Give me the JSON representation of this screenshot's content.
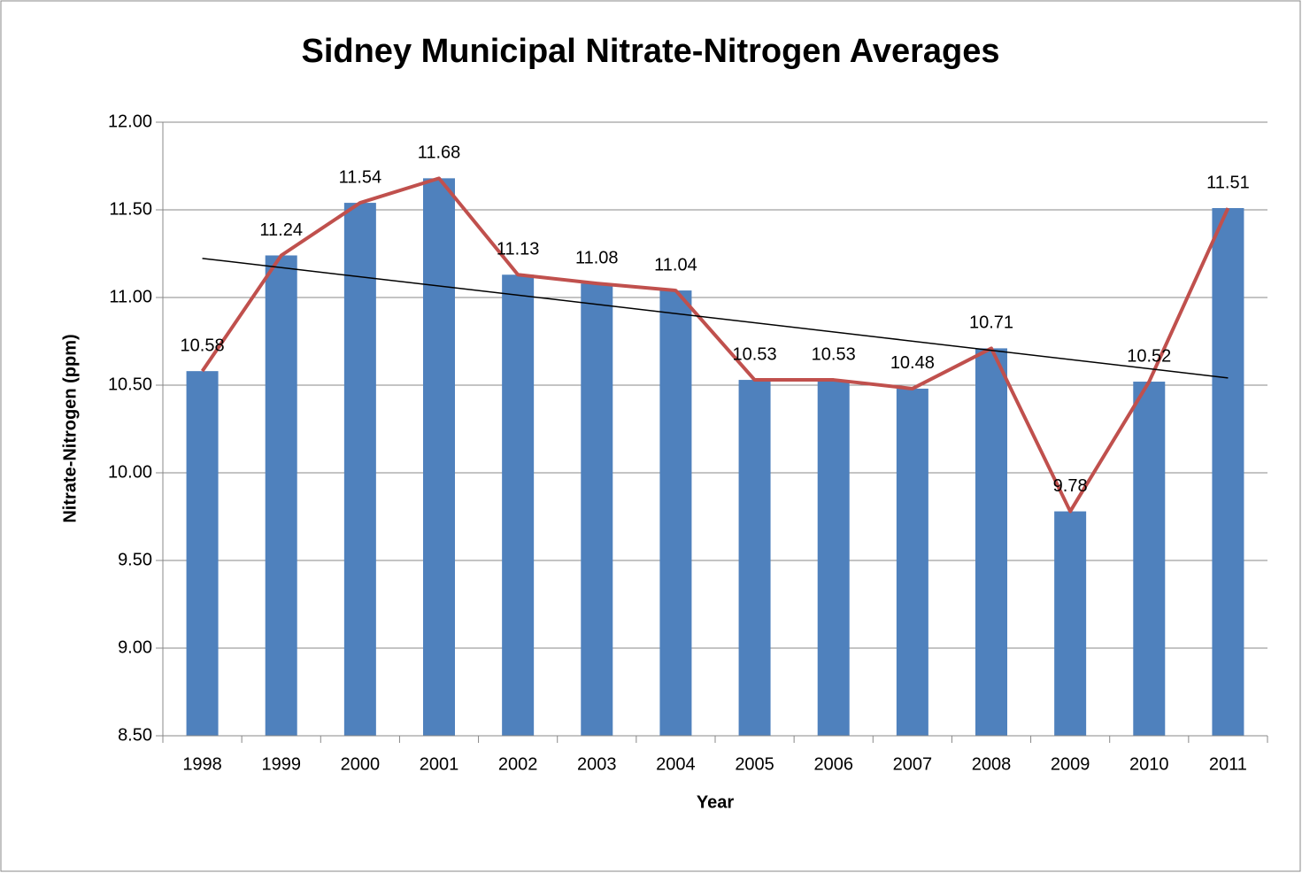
{
  "chart_data": {
    "type": "bar",
    "title": "Sidney Municipal Nitrate-Nitrogen Averages",
    "x_label": "Year",
    "y_label": "Nitrate-Nitrogen (ppm)",
    "categories": [
      "1998",
      "1999",
      "2000",
      "2001",
      "2002",
      "2003",
      "2004",
      "2005",
      "2006",
      "2007",
      "2008",
      "2009",
      "2010",
      "2011"
    ],
    "values": [
      10.58,
      11.24,
      11.54,
      11.68,
      11.13,
      11.08,
      11.04,
      10.53,
      10.53,
      10.48,
      10.71,
      9.78,
      10.52,
      11.51
    ],
    "color": "#4f81bd",
    "line_overlay": true,
    "line_color": "#c0504d",
    "trendline": true,
    "trendline_color": "#000000",
    "ylim": [
      8.5,
      12
    ],
    "yticks": [
      {
        "value": 8.5,
        "label": "8.50"
      },
      {
        "value": 9,
        "label": "9.00"
      },
      {
        "value": 9.5,
        "label": "9.50"
      },
      {
        "value": 10,
        "label": "10.00"
      },
      {
        "value": 10.5,
        "label": "10.50"
      },
      {
        "value": 11,
        "label": "11.00"
      },
      {
        "value": 11.5,
        "label": "11.50"
      },
      {
        "value": 12,
        "label": "12.00"
      }
    ],
    "grid": true
  }
}
